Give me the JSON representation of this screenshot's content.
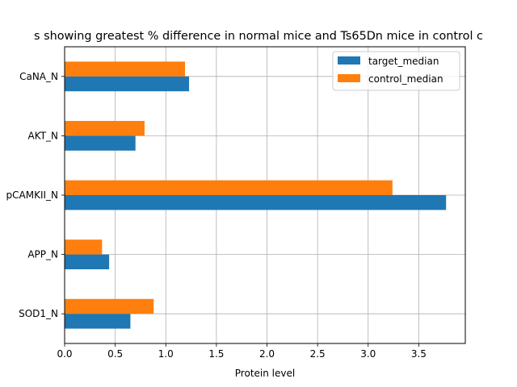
{
  "chart_data": {
    "type": "bar",
    "orientation": "horizontal",
    "title": "s showing greatest % difference in normal mice and Ts65Dn mice in control c",
    "xlabel": "Protein level",
    "ylabel": "",
    "categories": [
      "SOD1_N",
      "APP_N",
      "pCAMKII_N",
      "AKT_N",
      "CaNA_N"
    ],
    "category_labels": [
      "SOD1_N",
      "APP_N",
      "pCAMKII_N",
      "AKT_N",
      "CaNA_N"
    ],
    "series": [
      {
        "name": "target_median",
        "color": "#1f77b4",
        "values": [
          0.65,
          0.44,
          3.77,
          0.7,
          1.23
        ]
      },
      {
        "name": "control_median",
        "color": "#ff7f0e",
        "values": [
          0.88,
          0.37,
          3.24,
          0.79,
          1.19
        ]
      }
    ],
    "xlim": [
      0,
      3.96
    ],
    "xticks": [
      0.0,
      0.5,
      1.0,
      1.5,
      2.0,
      2.5,
      3.0,
      3.5
    ],
    "xtick_labels": [
      "0.0",
      "0.5",
      "1.0",
      "1.5",
      "2.0",
      "2.5",
      "3.0",
      "3.5"
    ],
    "grid": true,
    "legend_position": "top-right"
  }
}
